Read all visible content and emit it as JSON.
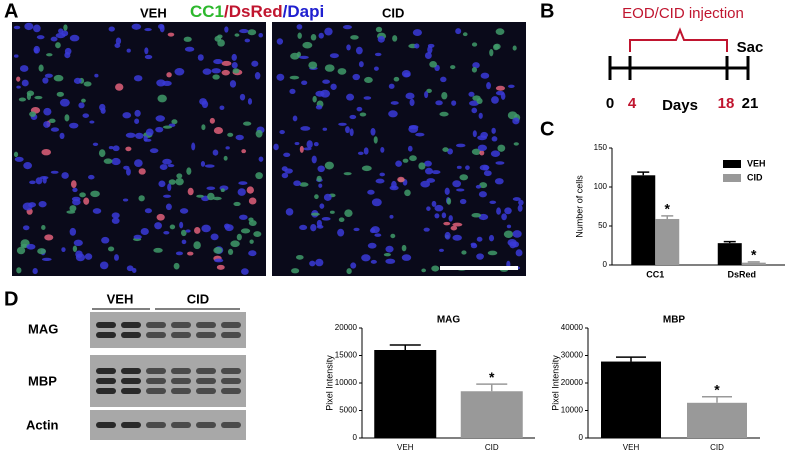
{
  "panels": {
    "A": {
      "label": "A",
      "left": "VEH",
      "stain": [
        "CC1",
        "/",
        "DsRed",
        "/",
        "Dapi"
      ],
      "right": "CID"
    },
    "B": {
      "label": "B",
      "title": "EOD/CID injection",
      "end": "Sac",
      "ticks": [
        "0",
        "4",
        "18",
        "21"
      ],
      "axis": "Days"
    },
    "C": {
      "label": "C"
    },
    "D": {
      "label": "D",
      "groups": [
        "VEH",
        "CID"
      ],
      "rows": [
        "MAG",
        "MBP",
        "Actin"
      ]
    }
  },
  "chart_data": [
    {
      "type": "bar",
      "ylabel": "Number of cells",
      "categories": [
        "CC1",
        "DsRed"
      ],
      "series": [
        {
          "name": "VEH",
          "color": "#000000",
          "values": [
            115,
            28
          ],
          "errors": [
            4,
            2
          ]
        },
        {
          "name": "CID",
          "color": "#999999",
          "values": [
            59,
            3
          ],
          "errors": [
            4,
            1
          ]
        }
      ],
      "annotation": "*",
      "ylim": [
        0,
        150
      ],
      "yticks": [
        0,
        50,
        100,
        150
      ],
      "legend": "top-right"
    },
    {
      "type": "bar",
      "title": "MAG",
      "ylabel": "Pixel Intensity",
      "categories": [
        "VEH",
        "CID"
      ],
      "values": [
        16000,
        8500
      ],
      "errors": [
        900,
        1300
      ],
      "colors": [
        "#000000",
        "#999999"
      ],
      "annotation": "*",
      "ylim": [
        0,
        20000
      ],
      "yticks": [
        0,
        5000,
        10000,
        15000,
        20000
      ]
    },
    {
      "type": "bar",
      "title": "MBP",
      "ylabel": "Pixel Intensity",
      "categories": [
        "VEH",
        "CID"
      ],
      "values": [
        27800,
        12800
      ],
      "errors": [
        1600,
        2200
      ],
      "colors": [
        "#000000",
        "#999999"
      ],
      "annotation": "*",
      "ylim": [
        0,
        40000
      ],
      "yticks": [
        0,
        10000,
        20000,
        30000,
        40000
      ]
    }
  ]
}
